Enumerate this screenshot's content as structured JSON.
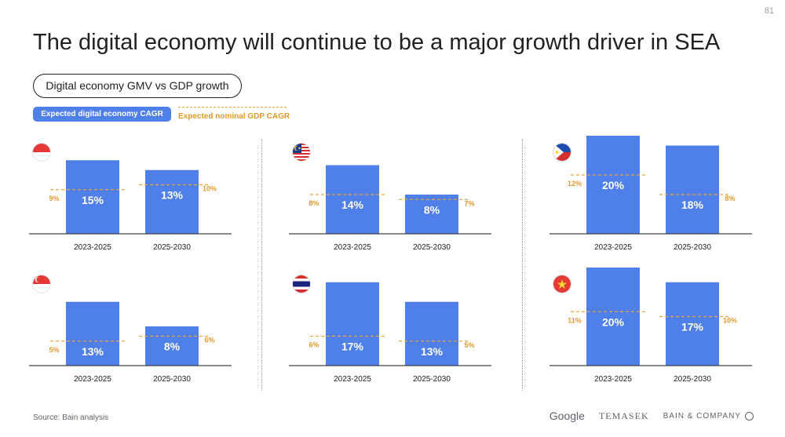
{
  "page_number": "81",
  "title": "The digital economy will continue to be a major growth driver in SEA",
  "subtitle": "Digital economy GMV vs GDP growth",
  "legend": {
    "digital_label": "Expected digital economy CAGR",
    "gdp_label": "Expected nominal GDP CAGR"
  },
  "colors": {
    "bar": "#4f7fe8",
    "gdp": "#e8a33b"
  },
  "source": "Source: Bain analysis",
  "logos": {
    "google": "Google",
    "temasek": "TEMASEK",
    "bain": "BAIN & COMPANY"
  },
  "chart_data": [
    {
      "type": "bar",
      "country": "Indonesia",
      "flag": "indonesia-flag-icon",
      "categories": [
        "2023-2025",
        "2025-2030"
      ],
      "digital_cagr": [
        15,
        13
      ],
      "gdp_cagr": [
        9,
        10
      ],
      "value_labels": [
        "15%",
        "13%"
      ],
      "gdp_labels": [
        "9%",
        "10%"
      ]
    },
    {
      "type": "bar",
      "country": "Malaysia",
      "flag": "malaysia-flag-icon",
      "categories": [
        "2023-2025",
        "2025-2030"
      ],
      "digital_cagr": [
        14,
        8
      ],
      "gdp_cagr": [
        8,
        7
      ],
      "value_labels": [
        "14%",
        "8%"
      ],
      "gdp_labels": [
        "8%",
        "7%"
      ]
    },
    {
      "type": "bar",
      "country": "Philippines",
      "flag": "philippines-flag-icon",
      "categories": [
        "2023-2025",
        "2025-2030"
      ],
      "digital_cagr": [
        20,
        18
      ],
      "gdp_cagr": [
        12,
        8
      ],
      "value_labels": [
        "20%",
        "18%"
      ],
      "gdp_labels": [
        "12%",
        "8%"
      ]
    },
    {
      "type": "bar",
      "country": "Singapore",
      "flag": "singapore-flag-icon",
      "categories": [
        "2023-2025",
        "2025-2030"
      ],
      "digital_cagr": [
        13,
        8
      ],
      "gdp_cagr": [
        5,
        6
      ],
      "value_labels": [
        "13%",
        "8%"
      ],
      "gdp_labels": [
        "5%",
        "6%"
      ]
    },
    {
      "type": "bar",
      "country": "Thailand",
      "flag": "thailand-flag-icon",
      "categories": [
        "2023-2025",
        "2025-2030"
      ],
      "digital_cagr": [
        17,
        13
      ],
      "gdp_cagr": [
        6,
        5
      ],
      "value_labels": [
        "17%",
        "13%"
      ],
      "gdp_labels": [
        "6%",
        "5%"
      ]
    },
    {
      "type": "bar",
      "country": "Vietnam",
      "flag": "vietnam-flag-icon",
      "categories": [
        "2023-2025",
        "2025-2030"
      ],
      "digital_cagr": [
        20,
        17
      ],
      "gdp_cagr": [
        11,
        10
      ],
      "value_labels": [
        "20%",
        "17%"
      ],
      "gdp_labels": [
        "11%",
        "10%"
      ]
    }
  ]
}
